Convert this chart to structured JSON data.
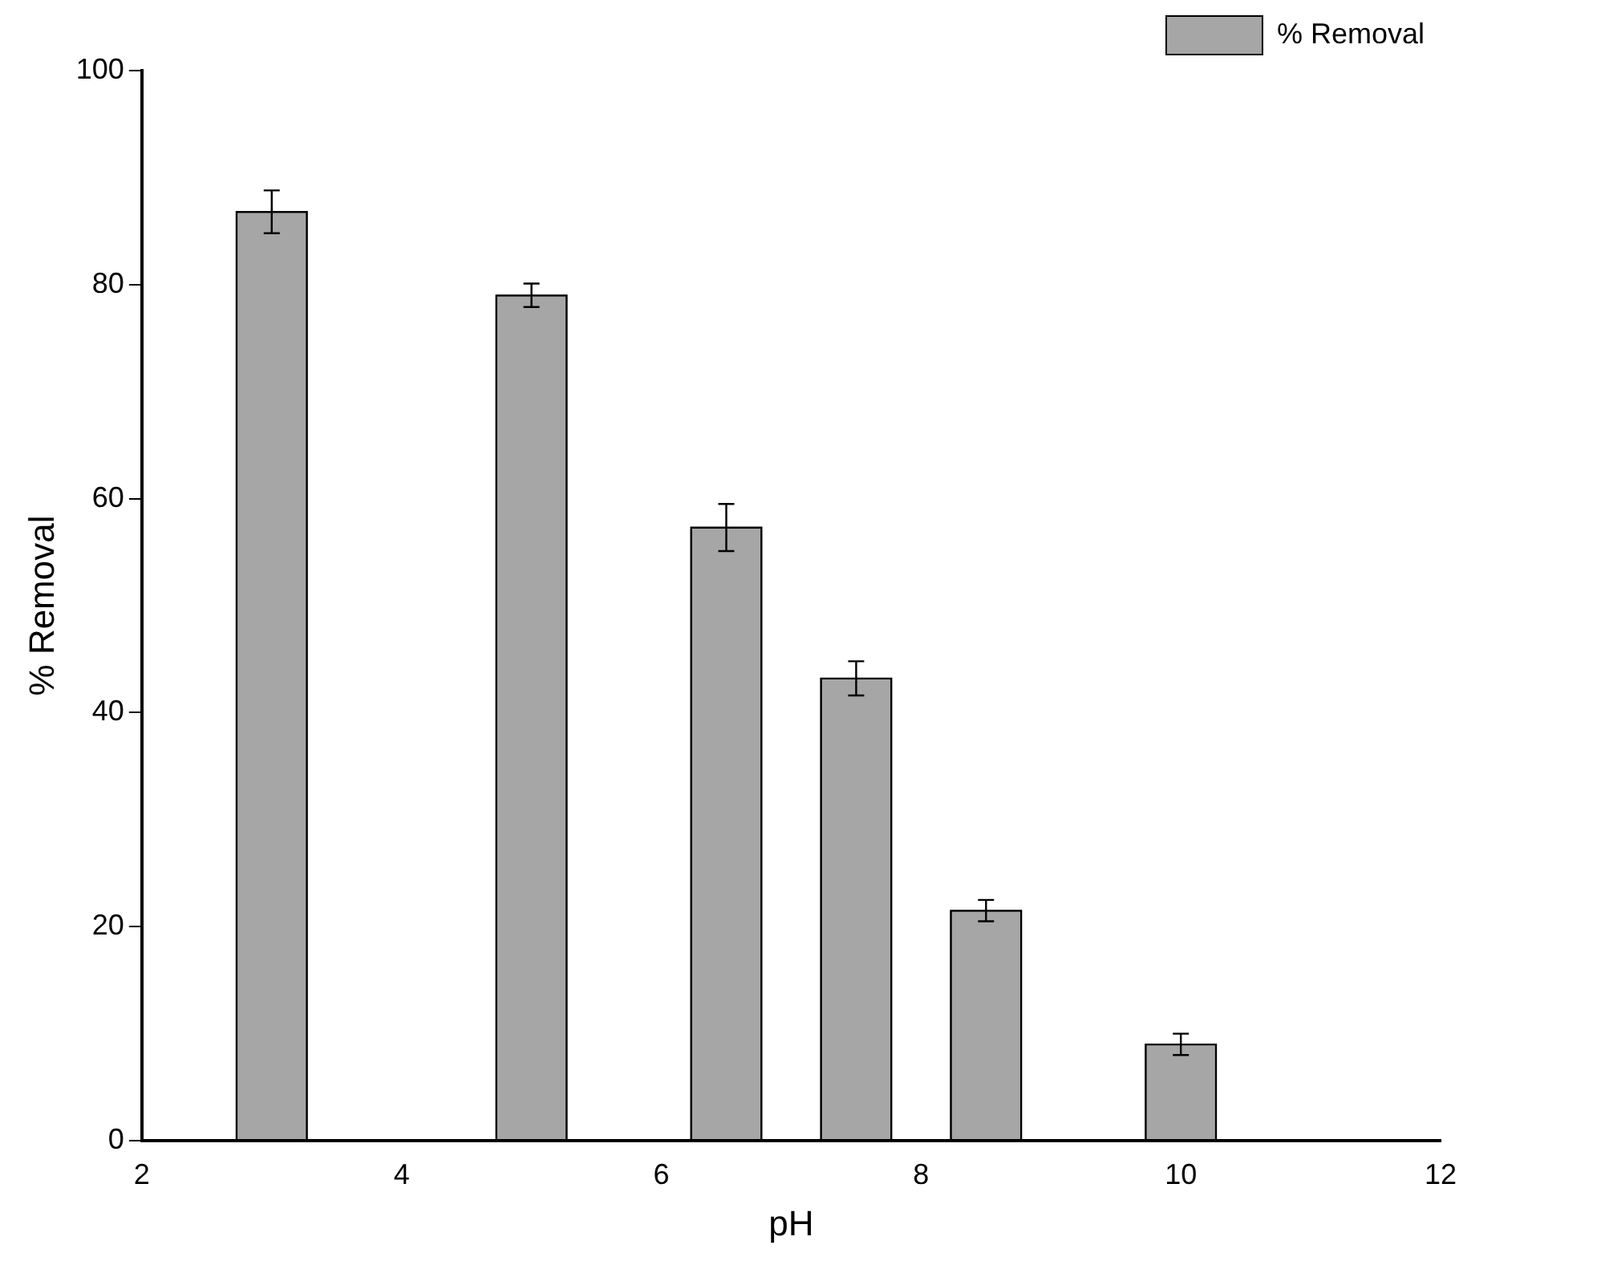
{
  "chart_data": {
    "type": "bar",
    "xlabel": "pH",
    "ylabel": "% Removal",
    "x": [
      3,
      5,
      6.5,
      7.5,
      8.5,
      10
    ],
    "series": [
      {
        "name": "% Removal",
        "color": "#a6a6a6",
        "values": [
          86.8,
          79.0,
          57.3,
          43.2,
          21.5,
          9.0
        ],
        "errors": [
          2,
          1.1,
          2.2,
          1.6,
          1,
          1
        ]
      }
    ],
    "xlim": [
      2,
      12
    ],
    "xticks": [
      2,
      4,
      6,
      8,
      10,
      12
    ],
    "ylim": [
      0,
      100
    ],
    "yticks": [
      0,
      20,
      40,
      60,
      80,
      100
    ],
    "grid": false,
    "legend": "top right"
  }
}
